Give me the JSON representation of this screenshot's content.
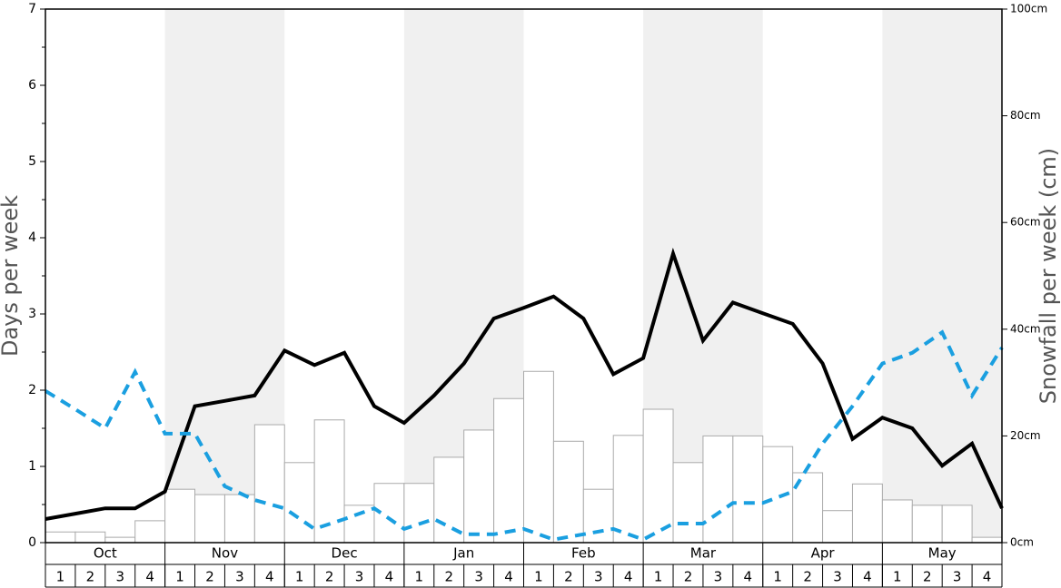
{
  "chart_data": {
    "type": "bar",
    "y_label": "Days per week",
    "y2_label": "Snowfall per week (cm)",
    "months": [
      "Oct",
      "Nov",
      "Dec",
      "Jan",
      "Feb",
      "Mar",
      "Apr",
      "May"
    ],
    "categories": [
      "1",
      "2",
      "3",
      "4",
      "1",
      "2",
      "3",
      "4",
      "1",
      "2",
      "3",
      "4",
      "1",
      "2",
      "3",
      "4",
      "1",
      "2",
      "3",
      "4",
      "1",
      "2",
      "3",
      "4",
      "1",
      "2",
      "3",
      "4",
      "1",
      "2",
      "3",
      "4"
    ],
    "x": [
      0,
      1,
      2,
      3,
      4,
      5,
      6,
      7,
      8,
      9,
      10,
      11,
      12,
      13,
      14,
      15,
      16,
      17,
      18,
      19,
      20,
      21,
      22,
      23,
      24,
      25,
      26,
      27,
      28,
      29,
      30,
      31,
      32
    ],
    "xlim": [
      0,
      32
    ],
    "ylim": [
      0,
      7
    ],
    "yticks": [
      0,
      1,
      2,
      3,
      4,
      5,
      6,
      7
    ],
    "yminorticks": [
      0.5,
      1.5,
      2.5,
      3.5,
      4.5,
      5.5,
      6.5
    ],
    "y2lim": [
      0,
      100
    ],
    "y2ticks": [
      {
        "value": 0,
        "label": "0cm"
      },
      {
        "value": 20,
        "label": "20cm"
      },
      {
        "value": 40,
        "label": "40cm"
      },
      {
        "value": 60,
        "label": "60cm"
      },
      {
        "value": 80,
        "label": "80cm"
      },
      {
        "value": 100,
        "label": "100cm"
      }
    ],
    "shade_color": "#f0f0f0",
    "series": [
      {
        "type": "bar",
        "axis": "y2",
        "color": "#ffffff",
        "stroke": "#aaaaaa",
        "values": [
          2.0,
          2.0,
          1.0,
          4.1,
          10.0,
          9.0,
          9.0,
          22.1,
          15.0,
          23.0,
          7.0,
          11.1,
          11.1,
          16.0,
          21.1,
          27.0,
          32.1,
          19.0,
          10.0,
          20.1,
          25.0,
          15.0,
          20.0,
          20.0,
          18.0,
          13.1,
          6.0,
          11.0,
          8.0,
          7.0,
          7.0,
          1.0
        ]
      },
      {
        "type": "line",
        "color": "#000000",
        "values": [
          0.31,
          0.38,
          0.45,
          0.45,
          0.67,
          1.79,
          1.86,
          1.93,
          2.52,
          2.33,
          2.49,
          1.79,
          1.57,
          1.93,
          2.35,
          2.94,
          3.08,
          3.23,
          2.94,
          2.21,
          2.42,
          3.79,
          2.65,
          3.15,
          3.01,
          2.87,
          2.35,
          1.36,
          1.64,
          1.5,
          1.01,
          1.3,
          0.45
        ]
      },
      {
        "type": "line",
        "color": "#1a9fe0",
        "dashed": true,
        "values": [
          1.99,
          1.75,
          1.5,
          2.24,
          1.43,
          1.43,
          0.74,
          0.56,
          0.45,
          0.18,
          0.31,
          0.45,
          0.18,
          0.31,
          0.11,
          0.11,
          0.18,
          0.04,
          0.11,
          0.18,
          0.04,
          0.25,
          0.25,
          0.52,
          0.52,
          0.67,
          1.3,
          1.79,
          2.35,
          2.49,
          2.76,
          1.93,
          2.56
        ]
      }
    ]
  }
}
